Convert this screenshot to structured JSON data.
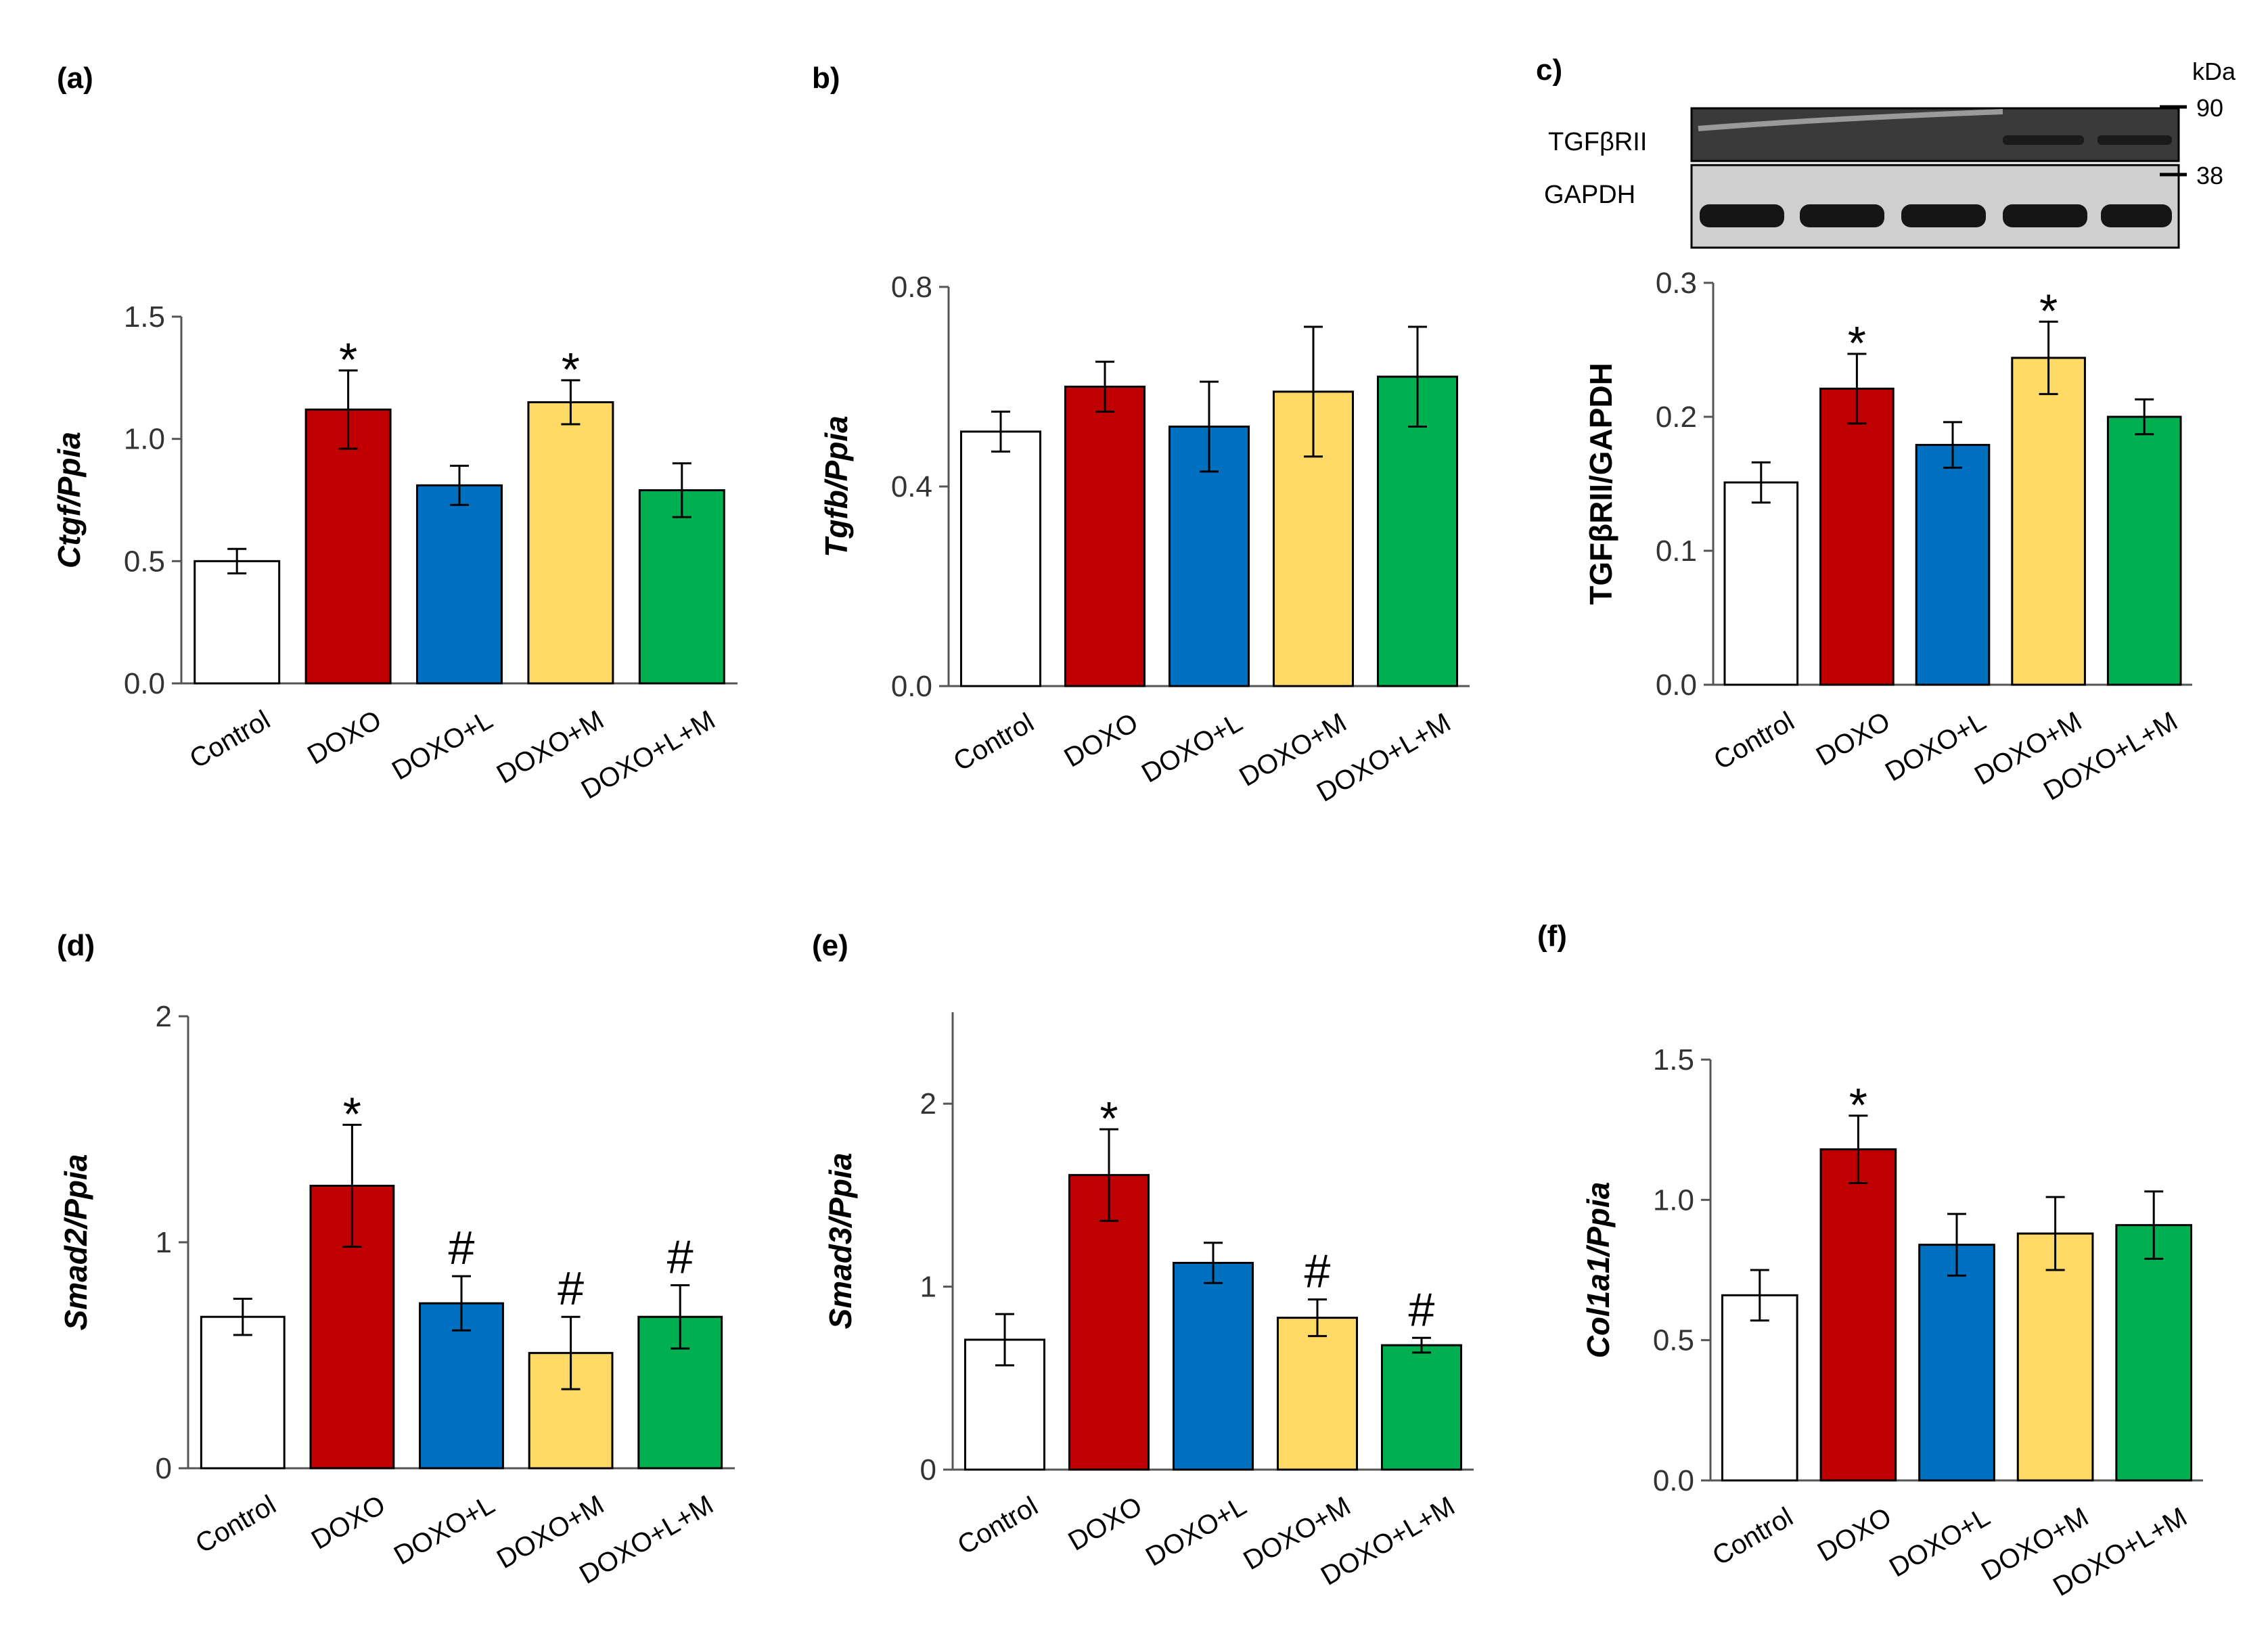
{
  "colors": [
    "#ffffff",
    "#c00000",
    "#0070c0",
    "#ffd966",
    "#00b050"
  ],
  "chart_data": [
    {
      "type": "bar",
      "label": "(a)",
      "ylabel": "Ctgf/Ppia",
      "yfont": "italic",
      "categories": [
        "Control",
        "DOXO",
        "DOXO+L",
        "DOXO+M",
        "DOXO+L+M"
      ],
      "values": [
        0.5,
        1.12,
        0.81,
        1.15,
        0.79
      ],
      "errors": [
        0.05,
        0.16,
        0.08,
        0.09,
        0.11
      ],
      "sig": [
        "",
        "*",
        "",
        "*",
        ""
      ],
      "ylim": [
        0,
        1.5
      ],
      "ticks": [
        "0.0",
        "0.5",
        "1.0",
        "1.5"
      ]
    },
    {
      "type": "bar",
      "label": "b)",
      "ylabel": "Tgfb/Ppia",
      "yfont": "italic",
      "categories": [
        "Control",
        "DOXO",
        "DOXO+L",
        "DOXO+M",
        "DOXO+L+M"
      ],
      "values": [
        0.51,
        0.6,
        0.52,
        0.59,
        0.62
      ],
      "errors": [
        0.04,
        0.05,
        0.09,
        0.13,
        0.1
      ],
      "sig": [
        "",
        "",
        "",
        "",
        ""
      ],
      "ylim": [
        0,
        0.8
      ],
      "ticks": [
        "0.0",
        "0.4",
        "0.8"
      ]
    },
    {
      "type": "bar",
      "label": "c)",
      "ylabel": "TGFβRII/GAPDH",
      "yfont": "normal",
      "categories": [
        "Control",
        "DOXO",
        "DOXO+L",
        "DOXO+M",
        "DOXO+L+M"
      ],
      "values": [
        0.151,
        0.221,
        0.179,
        0.244,
        0.2
      ],
      "errors": [
        0.015,
        0.026,
        0.017,
        0.027,
        0.013
      ],
      "sig": [
        "",
        "*",
        "",
        "*",
        ""
      ],
      "ylim": [
        0,
        0.3
      ],
      "ticks": [
        "0.0",
        "0.1",
        "0.2",
        "0.3"
      ]
    },
    {
      "type": "bar",
      "label": "(d)",
      "ylabel": "Smad2/Ppia",
      "yfont": "italic",
      "categories": [
        "Control",
        "DOXO",
        "DOXO+L",
        "DOXO+M",
        "DOXO+L+M"
      ],
      "values": [
        0.67,
        1.25,
        0.73,
        0.51,
        0.67
      ],
      "errors": [
        0.08,
        0.27,
        0.12,
        0.16,
        0.14
      ],
      "sig": [
        "",
        "*",
        "#",
        "#",
        "#"
      ],
      "ylim": [
        0,
        2
      ],
      "ticks": [
        "0",
        "1",
        "2"
      ]
    },
    {
      "type": "bar",
      "label": "(e)",
      "ylabel": "Smad3/Ppia",
      "yfont": "italic",
      "categories": [
        "Control",
        "DOXO",
        "DOXO+L",
        "DOXO+M",
        "DOXO+L+M"
      ],
      "values": [
        0.71,
        1.61,
        1.13,
        0.83,
        0.68
      ],
      "errors": [
        0.14,
        0.25,
        0.11,
        0.1,
        0.04
      ],
      "sig": [
        "",
        "*",
        "",
        "#",
        "#"
      ],
      "ylim": [
        0,
        2.5
      ],
      "ticks": [
        "0",
        "1",
        "2"
      ]
    },
    {
      "type": "bar",
      "label": "(f)",
      "ylabel": "Col1a1/Ppia",
      "yfont": "italic",
      "categories": [
        "Control",
        "DOXO",
        "DOXO+L",
        "DOXO+M",
        "DOXO+L+M"
      ],
      "values": [
        0.66,
        1.18,
        0.84,
        0.88,
        0.91
      ],
      "errors": [
        0.09,
        0.12,
        0.11,
        0.13,
        0.12
      ],
      "sig": [
        "",
        "*",
        "",
        "",
        ""
      ],
      "ylim": [
        0,
        1.5
      ],
      "ticks": [
        "0.0",
        "0.5",
        "1.0",
        "1.5"
      ]
    }
  ],
  "blot": {
    "unit": "kDa",
    "bands": [
      {
        "name": "TGFβRII",
        "marker": "90"
      },
      {
        "name": "GAPDH",
        "marker": "38"
      }
    ]
  }
}
